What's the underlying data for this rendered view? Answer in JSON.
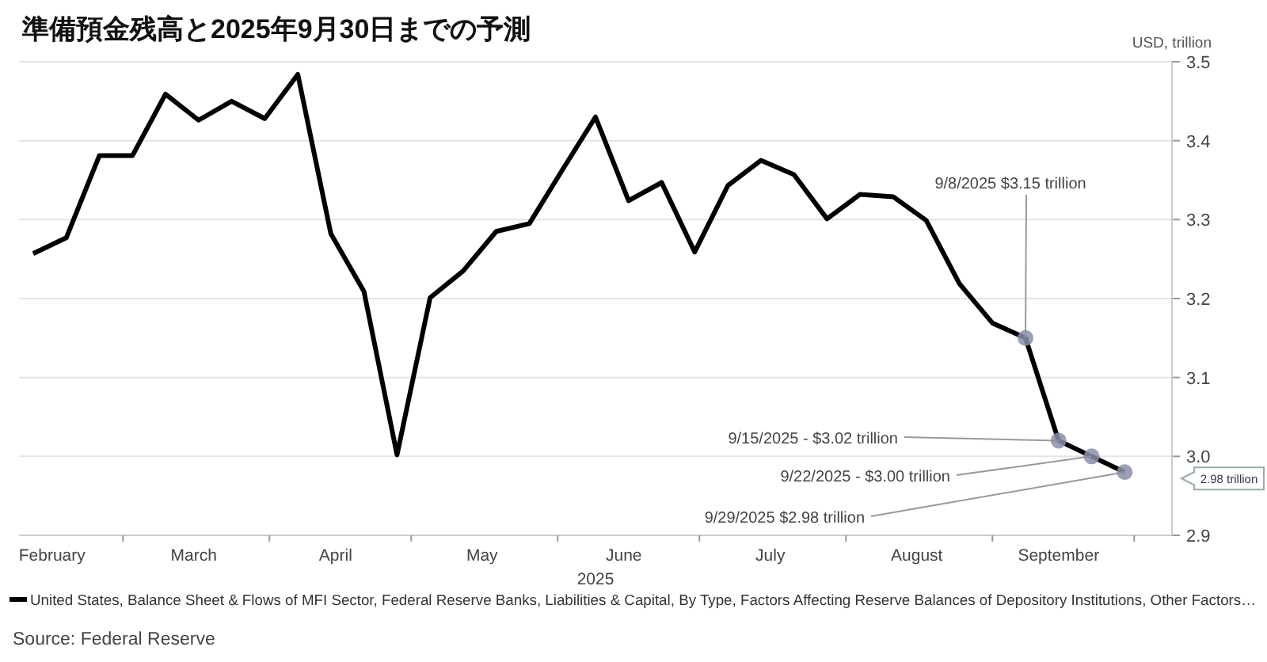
{
  "chart_data": {
    "type": "line",
    "title": "準備預金残高と2025年9月30日までの予測",
    "ylabel": "USD, trillion",
    "xlabel": "2025",
    "x": [
      "2025-02-10",
      "2025-02-17",
      "2025-02-24",
      "2025-03-03",
      "2025-03-10",
      "2025-03-17",
      "2025-03-24",
      "2025-03-31",
      "2025-04-07",
      "2025-04-14",
      "2025-04-21",
      "2025-04-28",
      "2025-05-05",
      "2025-05-12",
      "2025-05-19",
      "2025-05-26",
      "2025-06-02",
      "2025-06-09",
      "2025-06-16",
      "2025-06-23",
      "2025-06-30",
      "2025-07-07",
      "2025-07-14",
      "2025-07-21",
      "2025-07-28",
      "2025-08-04",
      "2025-08-11",
      "2025-08-18",
      "2025-08-25",
      "2025-09-01",
      "2025-09-08",
      "2025-09-15",
      "2025-09-22",
      "2025-09-29"
    ],
    "series": [
      {
        "name": "United States, Balance Sheet & Flows of MFI Sector, Federal Reserve Banks, Liabilities & Capital, By Type, Factors Affecting Reserve Balances of Depository Institutions, Other Factors…",
        "color": "#000000",
        "values": [
          3.257,
          3.277,
          3.381,
          3.381,
          3.459,
          3.426,
          3.45,
          3.428,
          3.484,
          3.282,
          3.209,
          3.002,
          3.201,
          3.235,
          3.285,
          3.295,
          3.363,
          3.43,
          3.324,
          3.347,
          3.259,
          3.343,
          3.375,
          3.357,
          3.301,
          3.332,
          3.329,
          3.299,
          3.219,
          3.169,
          3.15,
          3.02,
          3.0,
          2.98
        ]
      },
      {
        "type": "scatter",
        "color": "#8a8fa8",
        "marker": "circle",
        "x": [
          "2025-09-08",
          "2025-09-15",
          "2025-09-22",
          "2025-09-29"
        ],
        "values": [
          3.15,
          3.02,
          3.0,
          2.98
        ]
      }
    ],
    "xlim": [
      "2025-02-07",
      "2025-10-09"
    ],
    "xticks": [
      {
        "value": "2025-02-14",
        "label": "February"
      },
      {
        "value": "2025-03-01",
        "label": null
      },
      {
        "value": "2025-03-16",
        "label": "March"
      },
      {
        "value": "2025-04-01",
        "label": null
      },
      {
        "value": "2025-04-15",
        "label": "April"
      },
      {
        "value": "2025-05-01",
        "label": null
      },
      {
        "value": "2025-05-16",
        "label": "May"
      },
      {
        "value": "2025-06-01",
        "label": null
      },
      {
        "value": "2025-06-15",
        "label": "June"
      },
      {
        "value": "2025-07-01",
        "label": null
      },
      {
        "value": "2025-07-16",
        "label": "July"
      },
      {
        "value": "2025-08-01",
        "label": null
      },
      {
        "value": "2025-08-16",
        "label": "August"
      },
      {
        "value": "2025-09-01",
        "label": null
      },
      {
        "value": "2025-09-15",
        "label": "September"
      },
      {
        "value": "2025-10-01",
        "label": null
      }
    ],
    "ylim": [
      2.9,
      3.5
    ],
    "yticks": [
      2.9,
      {
        "value": 3.0,
        "label": "3.0"
      },
      3.1,
      3.2,
      3.3,
      3.4,
      3.5
    ],
    "grid": "y",
    "legend": "bottom",
    "annotations": [
      {
        "text": "9/8/2025 $3.15 trillion",
        "x": "2025-09-08",
        "y": 3.15
      },
      {
        "text": "9/15/2025 - $3.02 trillion",
        "x": "2025-09-15",
        "y": 3.02
      },
      {
        "text": "9/22/2025 - $3.00 trillion",
        "x": "2025-09-22",
        "y": 3.0
      },
      {
        "text": "9/29/2025  $2.98 trillion",
        "x": "2025-09-29",
        "y": 2.98
      },
      "2.98 trillion",
      "Source: Federal Reserve"
    ]
  }
}
